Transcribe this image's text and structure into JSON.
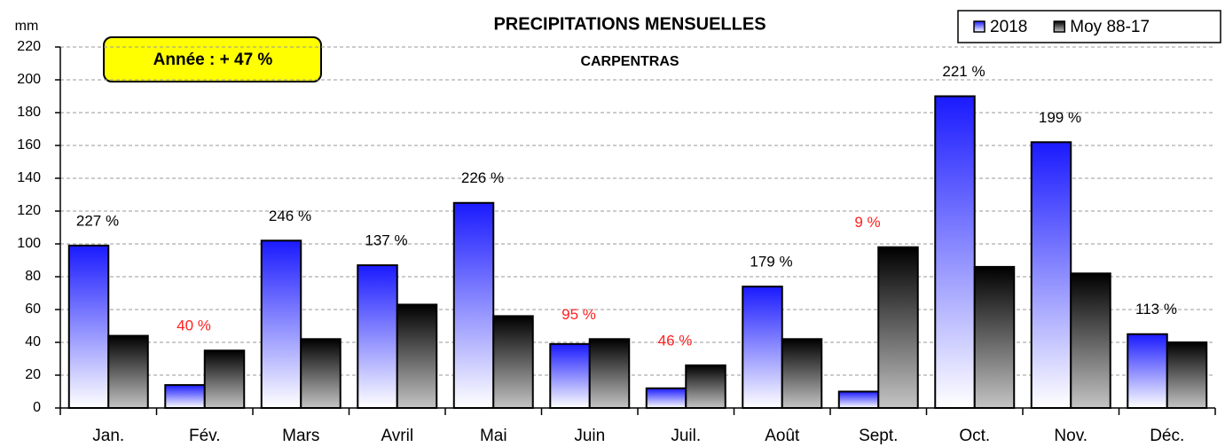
{
  "chart_data": {
    "type": "bar",
    "title": "PRECIPITATIONS MENSUELLES",
    "subtitle": "CARPENTRAS",
    "y_label": "mm",
    "annotation": "Année :  + 47 %",
    "categories": [
      "Jan.",
      "Fév.",
      "Mars",
      "Avril",
      "Mai",
      "Juin",
      "Juil.",
      "Août",
      "Sept.",
      "Oct.",
      "Nov.",
      "Déc."
    ],
    "series": [
      {
        "name": "2018",
        "color": "#1a1aff",
        "values": [
          99,
          14,
          102,
          87,
          125,
          39,
          12,
          74,
          10,
          190,
          162,
          45
        ]
      },
      {
        "name": "Moy 88-17",
        "color": "#000000",
        "values": [
          44,
          35,
          42,
          63,
          56,
          42,
          26,
          42,
          98,
          86,
          82,
          40
        ]
      }
    ],
    "ratios": [
      227,
      40,
      246,
      137,
      226,
      95,
      46,
      179,
      9,
      221,
      199,
      113
    ],
    "ratio_labels": [
      "227 %",
      "40 %",
      "246 %",
      "137 %",
      "226 %",
      "95 %",
      "46 %",
      "179 %",
      "9 %",
      "221 %",
      "199 %",
      "113 %"
    ],
    "ylim": [
      0,
      220
    ],
    "yticks": [
      0,
      20,
      40,
      60,
      80,
      100,
      120,
      140,
      160,
      180,
      200,
      220
    ],
    "grid": true,
    "legend": "top-right"
  }
}
